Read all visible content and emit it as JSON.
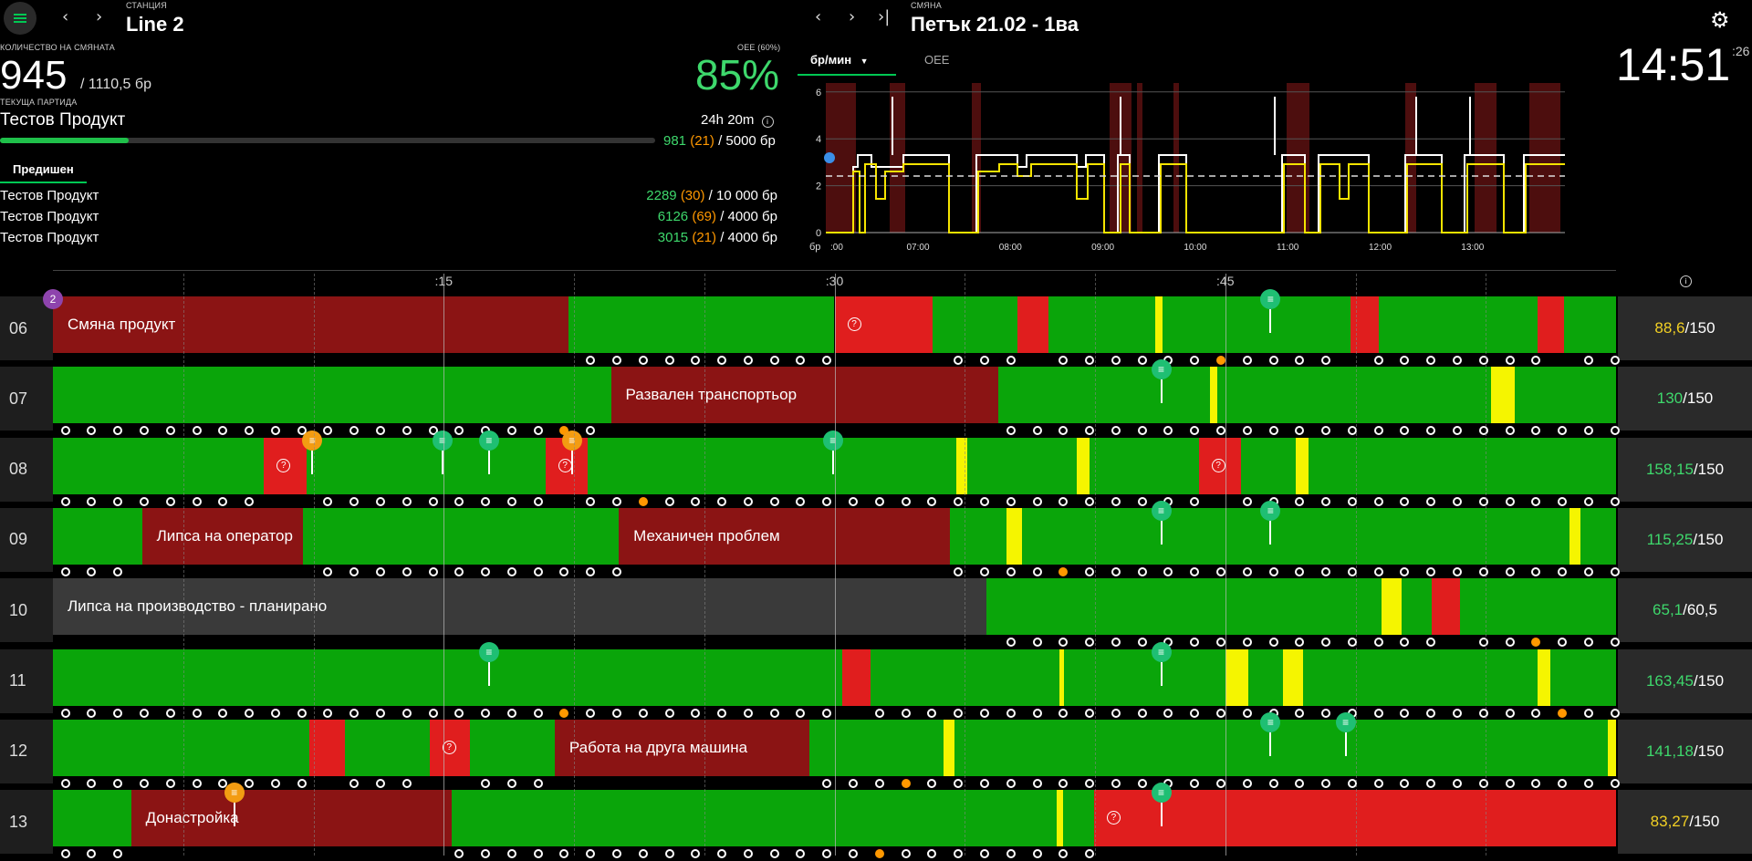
{
  "header": {
    "station_label": "СТАНЦИЯ",
    "station_name": "Line 2",
    "shift_label": "СМЯНА",
    "shift_name": "Петък 21.02 - 1ва",
    "clock_main": "14:51",
    "clock_sec": ":26"
  },
  "left_panel": {
    "shift_qty_label": "КОЛИЧЕСТВО НА СМЯНАТА",
    "shift_qty": "945",
    "shift_target": "/ 1110,5 бр",
    "oee_label": "OEE (60%)",
    "oee_value": "85%",
    "current_batch_label": "ТЕКУЩА ПАРТИДА",
    "product": "Тестов Продукт",
    "time_left": "24h 20m",
    "batch_done": "981",
    "batch_defect": "(21)",
    "batch_target": "/ 5000 бр",
    "batch_progress": 0.196,
    "prev_tab": "Предишен",
    "previous": [
      {
        "name": "Тестов Продукт",
        "done": "2289",
        "defect": "(30)",
        "target": "/ 10 000 бр"
      },
      {
        "name": "Тестов Продукт",
        "done": "6126",
        "defect": "(69)",
        "target": "/ 4000 бр"
      },
      {
        "name": "Тестов Продукт",
        "done": "3015",
        "defect": "(21)",
        "target": "/ 4000 бр"
      }
    ]
  },
  "chart_tabs": {
    "rate": "бр/мин",
    "oee": "OEE"
  },
  "chart": {
    "y_ticks": [
      "6",
      "4",
      "2",
      "0"
    ],
    "y_unit": "бр",
    "x_ticks": [
      ":00",
      "07:00",
      "08:00",
      "09:00",
      "10:00",
      "11:00",
      "12:00",
      "13:00"
    ]
  },
  "timeline": {
    "ticks": [
      ":15",
      ":30",
      ":45"
    ],
    "rows": [
      {
        "id": "06",
        "value": "88,6",
        "value_color": "#f2d024",
        "target": "/150",
        "segments": [
          {
            "s": 0,
            "e": 0.33,
            "c": "#8b1414",
            "label": "Смяна продукт"
          },
          {
            "s": 0.33,
            "e": 0.5,
            "c": "#0aa50a"
          },
          {
            "s": 0.5,
            "e": 0.563,
            "c": "#e01e1e",
            "q": true
          },
          {
            "s": 0.563,
            "e": 0.617,
            "c": "#0aa50a"
          },
          {
            "s": 0.617,
            "e": 0.637,
            "c": "#e01e1e"
          },
          {
            "s": 0.637,
            "e": 0.705,
            "c": "#0aa50a"
          },
          {
            "s": 0.705,
            "e": 0.71,
            "c": "#f5f500"
          },
          {
            "s": 0.71,
            "e": 0.83,
            "c": "#0aa50a"
          },
          {
            "s": 0.83,
            "e": 0.848,
            "c": "#e01e1e"
          },
          {
            "s": 0.848,
            "e": 0.95,
            "c": "#0aa50a"
          },
          {
            "s": 0.95,
            "e": 0.967,
            "c": "#e01e1e"
          },
          {
            "s": 0.967,
            "e": 1,
            "c": "#0aa50a"
          }
        ],
        "pins": [
          {
            "x": 0.779,
            "c": "#1fbf73"
          }
        ],
        "badge": "2"
      },
      {
        "id": "07",
        "value": "130",
        "value_color": "#3ed86c",
        "target": "/150",
        "segments": [
          {
            "s": 0,
            "e": 0.357,
            "c": "#0aa50a"
          },
          {
            "s": 0.357,
            "e": 0.605,
            "c": "#8b1414",
            "label": "Развален транспортьор"
          },
          {
            "s": 0.605,
            "e": 0.74,
            "c": "#0aa50a"
          },
          {
            "s": 0.74,
            "e": 0.745,
            "c": "#f5f500"
          },
          {
            "s": 0.745,
            "e": 0.92,
            "c": "#0aa50a"
          },
          {
            "s": 0.92,
            "e": 0.935,
            "c": "#f5f500"
          },
          {
            "s": 0.935,
            "e": 1,
            "c": "#0aa50a"
          }
        ],
        "pins": [
          {
            "x": 0.709,
            "c": "#1fbf73"
          }
        ]
      },
      {
        "id": "08",
        "value": "158,15",
        "value_color": "#3ed86c",
        "target": "/150",
        "segments": [
          {
            "s": 0,
            "e": 0.135,
            "c": "#0aa50a"
          },
          {
            "s": 0.135,
            "e": 0.162,
            "c": "#e01e1e",
            "q": true
          },
          {
            "s": 0.162,
            "e": 0.315,
            "c": "#0aa50a"
          },
          {
            "s": 0.315,
            "e": 0.342,
            "c": "#e01e1e",
            "q": true
          },
          {
            "s": 0.342,
            "e": 0.578,
            "c": "#0aa50a"
          },
          {
            "s": 0.578,
            "e": 0.585,
            "c": "#f5f500"
          },
          {
            "s": 0.585,
            "e": 0.655,
            "c": "#0aa50a"
          },
          {
            "s": 0.655,
            "e": 0.663,
            "c": "#f5f500"
          },
          {
            "s": 0.663,
            "e": 0.733,
            "c": "#0aa50a"
          },
          {
            "s": 0.733,
            "e": 0.76,
            "c": "#e01e1e",
            "q": true
          },
          {
            "s": 0.76,
            "e": 0.795,
            "c": "#0aa50a"
          },
          {
            "s": 0.795,
            "e": 0.803,
            "c": "#f5f500"
          },
          {
            "s": 0.803,
            "e": 1,
            "c": "#0aa50a"
          }
        ],
        "pins": [
          {
            "x": 0.166,
            "c": "#f39c12"
          },
          {
            "x": 0.249,
            "c": "#1fbf73"
          },
          {
            "x": 0.279,
            "c": "#1fbf73"
          },
          {
            "x": 0.332,
            "c": "#f39c12"
          },
          {
            "x": 0.499,
            "c": "#1fbf73"
          }
        ]
      },
      {
        "id": "09",
        "value": "115,25",
        "value_color": "#3ed86c",
        "target": "/150",
        "segments": [
          {
            "s": 0,
            "e": 0.057,
            "c": "#0aa50a"
          },
          {
            "s": 0.057,
            "e": 0.16,
            "c": "#8b1414",
            "label": "Липса на оператор"
          },
          {
            "s": 0.16,
            "e": 0.362,
            "c": "#0aa50a"
          },
          {
            "s": 0.362,
            "e": 0.574,
            "c": "#8b1414",
            "label": "Механичен проблем"
          },
          {
            "s": 0.574,
            "e": 0.61,
            "c": "#0aa50a"
          },
          {
            "s": 0.61,
            "e": 0.62,
            "c": "#f5f500"
          },
          {
            "s": 0.62,
            "e": 0.97,
            "c": "#0aa50a"
          },
          {
            "s": 0.97,
            "e": 0.977,
            "c": "#f5f500"
          },
          {
            "s": 0.977,
            "e": 1,
            "c": "#0aa50a"
          }
        ],
        "pins": [
          {
            "x": 0.709,
            "c": "#1fbf73"
          },
          {
            "x": 0.779,
            "c": "#1fbf73"
          }
        ]
      },
      {
        "id": "10",
        "value": "65,1",
        "value_color": "#3ed86c",
        "target": "/60,5",
        "segments": [
          {
            "s": 0,
            "e": 0.597,
            "c": "#3a3a3a",
            "label": "Липса на производство - планирано"
          },
          {
            "s": 0.597,
            "e": 0.85,
            "c": "#0aa50a"
          },
          {
            "s": 0.85,
            "e": 0.863,
            "c": "#f5f500"
          },
          {
            "s": 0.863,
            "e": 0.882,
            "c": "#0aa50a"
          },
          {
            "s": 0.882,
            "e": 0.9,
            "c": "#e01e1e"
          },
          {
            "s": 0.9,
            "e": 1,
            "c": "#0aa50a"
          }
        ],
        "pins": []
      },
      {
        "id": "11",
        "value": "163,45",
        "value_color": "#3ed86c",
        "target": "/150",
        "segments": [
          {
            "s": 0,
            "e": 0.505,
            "c": "#0aa50a"
          },
          {
            "s": 0.505,
            "e": 0.523,
            "c": "#e01e1e"
          },
          {
            "s": 0.523,
            "e": 0.644,
            "c": "#0aa50a"
          },
          {
            "s": 0.644,
            "e": 0.647,
            "c": "#f5f500"
          },
          {
            "s": 0.647,
            "e": 0.75,
            "c": "#0aa50a"
          },
          {
            "s": 0.75,
            "e": 0.765,
            "c": "#f5f500"
          },
          {
            "s": 0.765,
            "e": 0.787,
            "c": "#0aa50a"
          },
          {
            "s": 0.787,
            "e": 0.8,
            "c": "#f5f500"
          },
          {
            "s": 0.8,
            "e": 0.95,
            "c": "#0aa50a"
          },
          {
            "s": 0.95,
            "e": 0.958,
            "c": "#f5f500"
          },
          {
            "s": 0.958,
            "e": 1,
            "c": "#0aa50a"
          }
        ],
        "pins": [
          {
            "x": 0.279,
            "c": "#1fbf73"
          },
          {
            "x": 0.709,
            "c": "#1fbf73"
          }
        ]
      },
      {
        "id": "12",
        "value": "141,18",
        "value_color": "#3ed86c",
        "target": "/150",
        "segments": [
          {
            "s": 0,
            "e": 0.164,
            "c": "#0aa50a"
          },
          {
            "s": 0.164,
            "e": 0.187,
            "c": "#e01e1e"
          },
          {
            "s": 0.187,
            "e": 0.241,
            "c": "#0aa50a"
          },
          {
            "s": 0.241,
            "e": 0.267,
            "c": "#e01e1e",
            "q": true
          },
          {
            "s": 0.267,
            "e": 0.321,
            "c": "#0aa50a"
          },
          {
            "s": 0.321,
            "e": 0.484,
            "c": "#8b1414",
            "label": "Работа на друга машина"
          },
          {
            "s": 0.484,
            "e": 0.57,
            "c": "#0aa50a"
          },
          {
            "s": 0.57,
            "e": 0.577,
            "c": "#f5f500"
          },
          {
            "s": 0.577,
            "e": 0.995,
            "c": "#0aa50a"
          },
          {
            "s": 0.995,
            "e": 1,
            "c": "#f5f500"
          }
        ],
        "pins": [
          {
            "x": 0.779,
            "c": "#1fbf73"
          },
          {
            "x": 0.827,
            "c": "#1fbf73"
          }
        ]
      },
      {
        "id": "13",
        "value": "83,27",
        "value_color": "#f2d024",
        "target": "/150",
        "segments": [
          {
            "s": 0,
            "e": 0.05,
            "c": "#0aa50a"
          },
          {
            "s": 0.05,
            "e": 0.255,
            "c": "#8b1414",
            "label": "Донастройка"
          },
          {
            "s": 0.255,
            "e": 0.642,
            "c": "#0aa50a"
          },
          {
            "s": 0.642,
            "e": 0.646,
            "c": "#f5f500"
          },
          {
            "s": 0.646,
            "e": 0.666,
            "c": "#0aa50a"
          },
          {
            "s": 0.666,
            "e": 1,
            "c": "#e01e1e",
            "q": true
          }
        ],
        "pins": [
          {
            "x": 0.116,
            "c": "#f39c12"
          },
          {
            "x": 0.709,
            "c": "#1fbf73"
          }
        ]
      }
    ]
  },
  "colors": {
    "accent": "#00c853",
    "green": "#0aa50a",
    "red": "#e01e1e",
    "dark_red": "#8b1414",
    "yellow": "#f5f500"
  },
  "icons": {
    "menu": "hamburger-icon",
    "settings": "gear-icon",
    "info": "info-icon"
  }
}
